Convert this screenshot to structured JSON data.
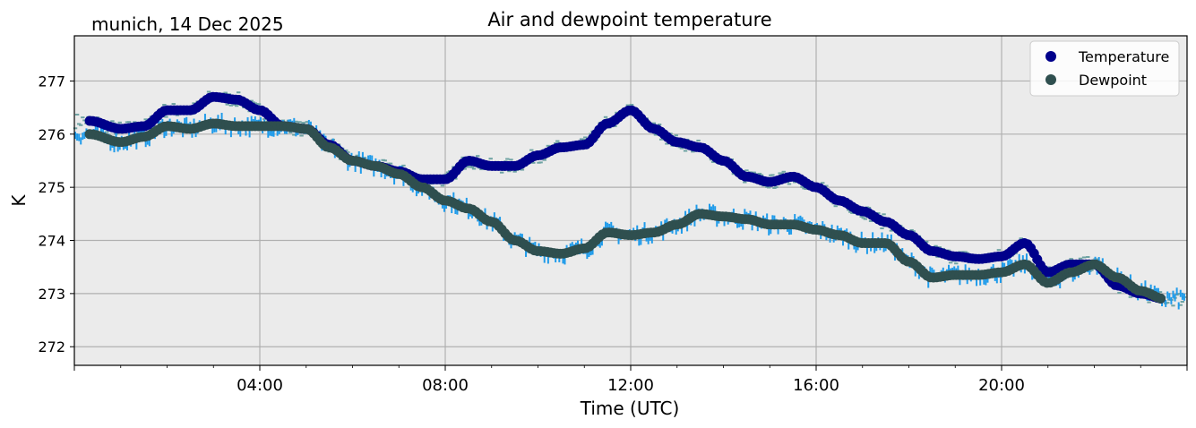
{
  "subtitle": "munich, 14 Dec 2025",
  "chart_data": {
    "type": "scatter",
    "title": "Air and dewpoint temperature",
    "xlabel": "Time (UTC)",
    "ylabel": "K",
    "xlim": [
      0,
      24
    ],
    "ylim": [
      271.65,
      277.85
    ],
    "grid": true,
    "x_ticks": [
      {
        "hour": 4,
        "label": "04:00"
      },
      {
        "hour": 8,
        "label": "08:00"
      },
      {
        "hour": 12,
        "label": "12:00"
      },
      {
        "hour": 16,
        "label": "16:00"
      },
      {
        "hour": 20,
        "label": "20:00"
      }
    ],
    "y_ticks": [
      {
        "value": 272,
        "label": "272"
      },
      {
        "value": 273,
        "label": "273"
      },
      {
        "value": 274,
        "label": "274"
      },
      {
        "value": 275,
        "label": "275"
      },
      {
        "value": 276,
        "label": "276"
      },
      {
        "value": 277,
        "label": "277"
      }
    ],
    "legend_position": "top-right",
    "series": [
      {
        "name": "Temperature",
        "color": "#00008b",
        "raw_color": "#6fa3a3",
        "x": [
          0.33,
          1.0,
          1.5,
          2.0,
          2.5,
          3.0,
          3.5,
          4.0,
          4.5,
          5.0,
          5.5,
          6.0,
          6.5,
          7.0,
          7.5,
          8.0,
          8.5,
          9.0,
          9.5,
          10.0,
          10.5,
          11.0,
          11.5,
          12.0,
          12.5,
          13.0,
          13.5,
          14.0,
          14.5,
          15.0,
          15.5,
          16.0,
          16.5,
          17.0,
          17.5,
          18.0,
          18.5,
          19.0,
          19.5,
          20.0,
          20.5,
          21.0,
          21.5,
          22.0,
          22.5,
          23.0,
          23.5
        ],
        "values": [
          276.25,
          276.1,
          276.15,
          276.45,
          276.45,
          276.7,
          276.65,
          276.45,
          276.15,
          276.1,
          275.8,
          275.5,
          275.4,
          275.3,
          275.15,
          275.15,
          275.5,
          275.4,
          275.4,
          275.6,
          275.75,
          275.8,
          276.2,
          276.45,
          276.1,
          275.85,
          275.75,
          275.5,
          275.2,
          275.1,
          275.2,
          275.0,
          274.75,
          274.55,
          274.35,
          274.1,
          273.8,
          273.7,
          273.65,
          273.7,
          273.95,
          273.4,
          273.55,
          273.55,
          273.15,
          273.0,
          272.9
        ]
      },
      {
        "name": "Dewpoint",
        "color": "#2f4f4f",
        "raw_color": "#1f9bea",
        "x": [
          0.33,
          1.0,
          1.5,
          2.0,
          2.5,
          3.0,
          3.5,
          4.0,
          4.5,
          5.0,
          5.5,
          6.0,
          6.5,
          7.0,
          7.5,
          8.0,
          8.5,
          9.0,
          9.5,
          10.0,
          10.5,
          11.0,
          11.5,
          12.0,
          12.5,
          13.0,
          13.5,
          14.0,
          14.5,
          15.0,
          15.5,
          16.0,
          16.5,
          17.0,
          17.5,
          18.0,
          18.5,
          19.0,
          19.5,
          20.0,
          20.5,
          21.0,
          21.5,
          22.0,
          22.5,
          23.0,
          23.5
        ],
        "values": [
          276.0,
          275.85,
          275.95,
          276.15,
          276.1,
          276.2,
          276.15,
          276.15,
          276.15,
          276.1,
          275.75,
          275.5,
          275.4,
          275.25,
          275.0,
          274.75,
          274.6,
          274.35,
          274.0,
          273.8,
          273.75,
          273.85,
          274.15,
          274.1,
          274.15,
          274.3,
          274.5,
          274.45,
          274.4,
          274.3,
          274.3,
          274.2,
          274.1,
          273.95,
          273.95,
          273.6,
          273.3,
          273.35,
          273.35,
          273.4,
          273.55,
          273.2,
          273.4,
          273.55,
          273.3,
          273.05,
          272.9
        ]
      }
    ]
  }
}
